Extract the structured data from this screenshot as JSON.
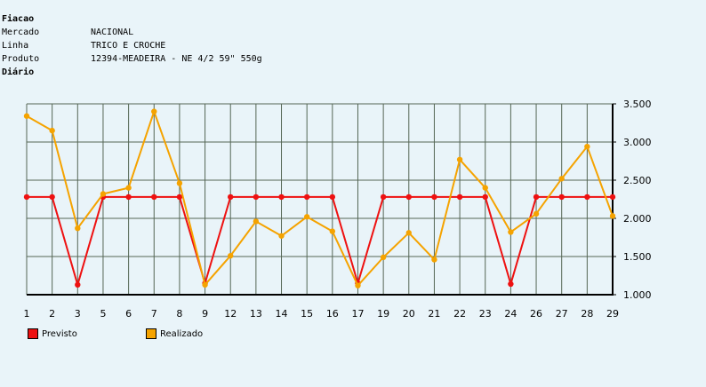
{
  "header": {
    "title": "Fiacao",
    "rows": [
      {
        "label": "Mercado",
        "value": "NACIONAL"
      },
      {
        "label": "Linha",
        "value": "TRICO E CROCHE"
      },
      {
        "label": "Produto",
        "value": "12394-MEADEIRA - NE 4/2 59\" 550g"
      }
    ],
    "period": "Diário"
  },
  "colors": {
    "previsto": "#ee1111",
    "realizado": "#f5a300",
    "grid": "#556655",
    "axis": "#000000"
  },
  "chart_data": {
    "type": "line",
    "categories": [
      "1",
      "2",
      "3",
      "5",
      "6",
      "7",
      "8",
      "9",
      "12",
      "13",
      "14",
      "15",
      "16",
      "17",
      "19",
      "20",
      "21",
      "22",
      "23",
      "24",
      "26",
      "27",
      "28",
      "29"
    ],
    "series": [
      {
        "name": "Previsto",
        "values": [
          2280,
          2280,
          1130,
          2280,
          2280,
          2280,
          2280,
          1150,
          2280,
          2280,
          2280,
          2280,
          2280,
          1150,
          2280,
          2280,
          2280,
          2280,
          2280,
          1140,
          2280,
          2280,
          2280,
          2280
        ]
      },
      {
        "name": "Realizado",
        "values": [
          3340,
          3150,
          1870,
          2320,
          2400,
          3400,
          2460,
          1130,
          1510,
          1960,
          1770,
          2020,
          1830,
          1120,
          1490,
          1810,
          1460,
          2770,
          2400,
          1820,
          2060,
          2520,
          2940,
          2030
        ]
      }
    ],
    "y_ticks": [
      "3.500",
      "3.000",
      "2.500",
      "2.000",
      "1.500",
      "1.000"
    ],
    "ylim": [
      1000,
      3500
    ],
    "y_axis_side": "right",
    "grid": true,
    "legend": "bottom-left"
  }
}
